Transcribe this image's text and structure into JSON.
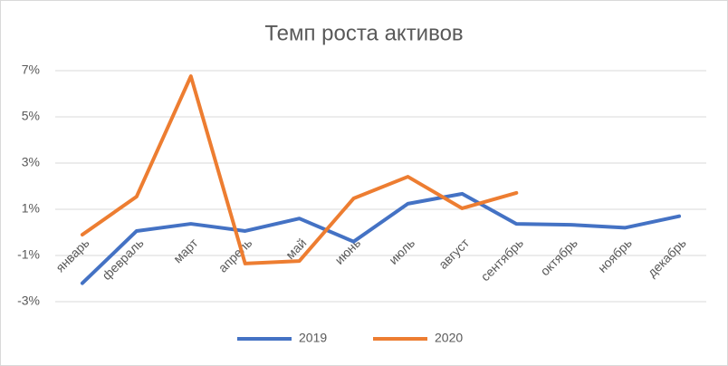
{
  "chart_data": {
    "type": "line",
    "title": "Темп роста активов",
    "categories": [
      "январь",
      "февраль",
      "март",
      "апрель",
      "май",
      "июнь",
      "июль",
      "август",
      "сентябрь",
      "октябрь",
      "ноябрь",
      "декабрь"
    ],
    "series": [
      {
        "name": "2019",
        "color": "#4472c4",
        "values": [
          -2.2,
          0.06,
          0.37,
          0.06,
          0.6,
          -0.4,
          1.24,
          1.67,
          0.37,
          0.33,
          0.2,
          0.7
        ]
      },
      {
        "name": "2020",
        "color": "#ed7d31",
        "values": [
          -0.1,
          1.55,
          6.76,
          -1.35,
          -1.24,
          1.47,
          2.41,
          1.04,
          1.71,
          null,
          null,
          null
        ]
      }
    ],
    "ylim": [
      -3,
      7
    ],
    "yticks": [
      {
        "value": 7,
        "label": "7%"
      },
      {
        "value": 5,
        "label": "5%"
      },
      {
        "value": 3,
        "label": "3%"
      },
      {
        "value": 1,
        "label": "1%"
      },
      {
        "value": -1,
        "label": "-1%"
      },
      {
        "value": -3,
        "label": "-3%"
      }
    ],
    "grid": true,
    "legend": "bottom"
  }
}
